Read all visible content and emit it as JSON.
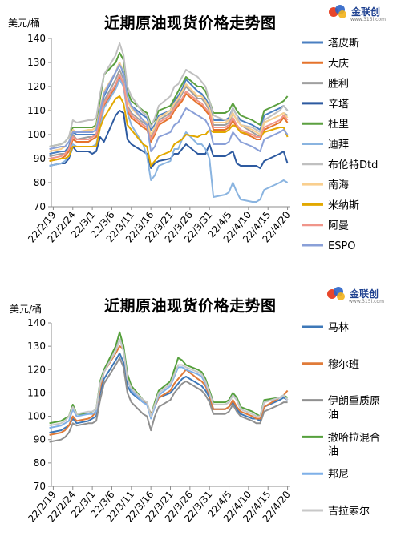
{
  "logo": {
    "text": "金联创",
    "sub": "www.315i.com"
  },
  "chart_data": [
    {
      "type": "line",
      "title": "近期原油现货价格走势图",
      "ylabel": "美元/桶",
      "ylim": [
        70,
        140
      ],
      "yticks": [
        "70",
        "80",
        "90",
        "100",
        "110",
        "120",
        "130",
        "140"
      ],
      "xtick_labels": [
        "22/2/19",
        "22/2/24",
        "22/3/1",
        "22/3/6",
        "22/3/11",
        "22/3/16",
        "22/3/21",
        "22/3/26",
        "22/3/31",
        "22/4/5",
        "22/4/10",
        "22/4/15",
        "22/4/20"
      ],
      "grid": false,
      "legend": "right",
      "x": [
        "2022-02-18",
        "2022-02-21",
        "2022-02-22",
        "2022-02-23",
        "2022-02-24",
        "2022-02-25",
        "2022-02-28",
        "2022-03-01",
        "2022-03-02",
        "2022-03-03",
        "2022-03-04",
        "2022-03-07",
        "2022-03-08",
        "2022-03-09",
        "2022-03-10",
        "2022-03-11",
        "2022-03-14",
        "2022-03-15",
        "2022-03-16",
        "2022-03-17",
        "2022-03-18",
        "2022-03-21",
        "2022-03-22",
        "2022-03-23",
        "2022-03-24",
        "2022-03-25",
        "2022-03-28",
        "2022-03-29",
        "2022-03-30",
        "2022-03-31",
        "2022-04-01",
        "2022-04-04",
        "2022-04-05",
        "2022-04-06",
        "2022-04-07",
        "2022-04-08",
        "2022-04-11",
        "2022-04-12",
        "2022-04-13",
        "2022-04-14",
        "2022-04-18",
        "2022-04-19",
        "2022-04-20"
      ],
      "series": [
        {
          "name": "塔皮斯",
          "color": "#4a7fc1",
          "values": [
            92,
            93,
            93,
            95,
            101,
            100,
            100,
            100,
            100,
            110,
            116,
            126,
            130,
            125,
            115,
            112,
            108,
            107,
            102,
            104,
            108,
            110,
            114,
            116,
            119,
            123,
            118,
            117,
            115,
            112,
            106,
            106,
            107,
            111,
            108,
            106,
            104,
            103,
            102,
            108,
            111,
            112,
            110
          ]
        },
        {
          "name": "大庆",
          "color": "#e5732c",
          "values": [
            89,
            90,
            91,
            93,
            98,
            97,
            97,
            98,
            99,
            106,
            112,
            120,
            124,
            120,
            110,
            107,
            103,
            102,
            97,
            100,
            104,
            107,
            110,
            112,
            114,
            117,
            113,
            112,
            110,
            108,
            102,
            102,
            103,
            106,
            103,
            101,
            99,
            98,
            98,
            102,
            105,
            107,
            105
          ]
        },
        {
          "name": "胜利",
          "color": "#a0a0a0",
          "values": [
            91,
            92,
            92,
            94,
            100,
            98,
            99,
            99,
            100,
            108,
            114,
            123,
            127,
            123,
            112,
            109,
            105,
            104,
            99,
            102,
            106,
            109,
            112,
            114,
            117,
            120,
            115,
            115,
            113,
            110,
            104,
            104,
            105,
            109,
            106,
            104,
            101,
            100,
            99,
            105,
            108,
            109,
            108
          ]
        },
        {
          "name": "辛塔",
          "color": "#2d5aa0",
          "values": [
            87,
            88,
            88,
            90,
            95,
            93,
            93,
            92,
            93,
            99,
            97,
            108,
            110,
            109,
            98,
            96,
            93,
            92,
            86,
            88,
            89,
            90,
            92,
            92,
            94,
            96,
            92,
            92,
            92,
            96,
            91,
            91,
            92,
            93,
            88,
            87,
            87,
            87,
            86,
            89,
            92,
            93,
            88
          ]
        },
        {
          "name": "杜里",
          "color": "#5ca040",
          "values": [
            95,
            96,
            97,
            99,
            103,
            103,
            103,
            103,
            104,
            115,
            125,
            130,
            134,
            131,
            118,
            114,
            110,
            109,
            104,
            106,
            110,
            112,
            115,
            118,
            121,
            124,
            120,
            120,
            118,
            114,
            109,
            109,
            110,
            113,
            110,
            108,
            106,
            105,
            104,
            110,
            113,
            114,
            116
          ]
        },
        {
          "name": "迪拜",
          "color": "#8ab4e0",
          "values": [
            87,
            88,
            89,
            91,
            96,
            95,
            95,
            95,
            96,
            103,
            111,
            119,
            123,
            120,
            109,
            104,
            96,
            91,
            81,
            83,
            87,
            89,
            94,
            94,
            98,
            101,
            96,
            96,
            94,
            90,
            74,
            75,
            76,
            80,
            76,
            73,
            72,
            72,
            73,
            77,
            80,
            81,
            80
          ]
        },
        {
          "name": "布伦特Dtd",
          "color": "#c0c0c0",
          "values": [
            95,
            96,
            97,
            99,
            106,
            105,
            106,
            106,
            107,
            117,
            125,
            133,
            138,
            133,
            120,
            116,
            109,
            108,
            103,
            107,
            112,
            116,
            120,
            121,
            124,
            127,
            124,
            122,
            120,
            114,
            108,
            106,
            106,
            111,
            108,
            104,
            103,
            102,
            101,
            106,
            110,
            112,
            110
          ]
        },
        {
          "name": "南海",
          "color": "#f9cf8f",
          "values": [
            93,
            94,
            95,
            97,
            102,
            101,
            102,
            102,
            103,
            111,
            118,
            126,
            130,
            126,
            114,
            111,
            106,
            105,
            100,
            103,
            107,
            110,
            113,
            115,
            118,
            121,
            116,
            116,
            114,
            111,
            105,
            105,
            106,
            109,
            106,
            104,
            102,
            101,
            100,
            105,
            108,
            109,
            107
          ]
        },
        {
          "name": "米纳斯",
          "color": "#e2a800",
          "values": [
            89,
            90,
            90,
            91,
            95,
            95,
            95,
            95,
            95,
            103,
            107,
            115,
            116,
            113,
            104,
            102,
            96,
            95,
            87,
            89,
            91,
            93,
            96,
            97,
            98,
            100,
            99,
            100,
            100,
            102,
            101,
            101,
            102,
            104,
            103,
            101,
            100,
            99,
            99,
            101,
            103,
            103,
            99
          ]
        },
        {
          "name": "阿曼",
          "color": "#f0958a",
          "values": [
            90,
            91,
            92,
            94,
            99,
            98,
            98,
            99,
            100,
            107,
            113,
            121,
            125,
            121,
            111,
            108,
            104,
            103,
            98,
            101,
            105,
            108,
            111,
            113,
            115,
            118,
            114,
            113,
            111,
            109,
            103,
            103,
            104,
            107,
            104,
            102,
            100,
            99,
            99,
            103,
            106,
            108,
            106
          ]
        },
        {
          "name": "ESPO",
          "color": "#8aa0d8",
          "values": [
            94,
            95,
            95,
            97,
            101,
            101,
            101,
            101,
            102,
            110,
            117,
            126,
            129,
            126,
            116,
            112,
            106,
            104,
            93,
            95,
            99,
            101,
            104,
            105,
            108,
            111,
            108,
            107,
            106,
            103,
            96,
            96,
            97,
            101,
            99,
            97,
            95,
            94,
            93,
            98,
            101,
            102,
            100
          ]
        }
      ]
    },
    {
      "type": "line",
      "title": "近期原油现货价格走势图",
      "ylabel": "美元/桶",
      "ylim": [
        70,
        140
      ],
      "yticks": [
        "70",
        "80",
        "90",
        "100",
        "110",
        "120",
        "130",
        "140"
      ],
      "xtick_labels": [
        "22/2/19",
        "22/2/24",
        "22/3/1",
        "22/3/6",
        "22/3/11",
        "22/3/16",
        "22/3/21",
        "22/3/26",
        "22/3/31",
        "22/4/5",
        "22/4/10",
        "22/4/15",
        "22/4/20"
      ],
      "grid": false,
      "legend": "right",
      "x": [
        "2022-02-18",
        "2022-02-21",
        "2022-02-22",
        "2022-02-23",
        "2022-02-24",
        "2022-02-25",
        "2022-02-28",
        "2022-03-01",
        "2022-03-02",
        "2022-03-03",
        "2022-03-04",
        "2022-03-07",
        "2022-03-08",
        "2022-03-09",
        "2022-03-10",
        "2022-03-11",
        "2022-03-14",
        "2022-03-15",
        "2022-03-16",
        "2022-03-17",
        "2022-03-18",
        "2022-03-21",
        "2022-03-22",
        "2022-03-23",
        "2022-03-24",
        "2022-03-25",
        "2022-03-28",
        "2022-03-29",
        "2022-03-30",
        "2022-03-31",
        "2022-04-01",
        "2022-04-04",
        "2022-04-05",
        "2022-04-06",
        "2022-04-07",
        "2022-04-08",
        "2022-04-11",
        "2022-04-12",
        "2022-04-13",
        "2022-04-14",
        "2022-04-18",
        "2022-04-19",
        "2022-04-20"
      ],
      "series": [
        {
          "name": "马林",
          "color": "#3e78b8",
          "values": [
            93,
            94,
            95,
            96,
            99,
            97,
            98,
            99,
            100,
            110,
            116,
            124,
            127,
            123,
            113,
            110,
            106,
            105,
            101,
            104,
            108,
            110,
            112,
            114,
            116,
            117,
            114,
            113,
            111,
            108,
            103,
            103,
            104,
            106,
            103,
            101,
            99,
            99,
            98,
            104,
            107,
            108,
            107
          ]
        },
        {
          "name": "穆尔班",
          "color": "#e07b39",
          "values": [
            92,
            93,
            94,
            96,
            100,
            98,
            99,
            100,
            102,
            112,
            119,
            127,
            130,
            129,
            116,
            112,
            107,
            105,
            101,
            104,
            108,
            111,
            114,
            116,
            118,
            120,
            116,
            115,
            113,
            109,
            103,
            103,
            104,
            107,
            104,
            102,
            100,
            99,
            99,
            104,
            108,
            109,
            111
          ]
        },
        {
          "name": "伊朗重质原油",
          "color": "#909090",
          "values": [
            89,
            90,
            91,
            93,
            97,
            96,
            97,
            97,
            98,
            107,
            114,
            122,
            125,
            121,
            110,
            106,
            101,
            100,
            94,
            100,
            104,
            107,
            110,
            112,
            114,
            115,
            112,
            111,
            109,
            106,
            101,
            101,
            102,
            105,
            102,
            100,
            98,
            97,
            97,
            102,
            105,
            106,
            106
          ]
        },
        {
          "name": "撒哈拉混合油",
          "color": "#55a03c",
          "values": [
            97,
            98,
            99,
            100,
            105,
            101,
            101,
            102,
            103,
            115,
            120,
            130,
            136,
            130,
            118,
            113,
            107,
            106,
            100,
            106,
            111,
            115,
            120,
            125,
            124,
            122,
            120,
            119,
            116,
            111,
            106,
            106,
            107,
            110,
            108,
            104,
            102,
            101,
            100,
            107,
            108,
            109,
            108
          ]
        },
        {
          "name": "邦尼",
          "color": "#7fb0e8",
          "values": [
            95,
            96,
            97,
            98,
            103,
            100,
            101,
            101,
            102,
            114,
            119,
            128,
            133,
            128,
            116,
            111,
            106,
            105,
            99,
            104,
            109,
            113,
            117,
            121,
            121,
            120,
            118,
            117,
            114,
            110,
            105,
            105,
            106,
            109,
            107,
            103,
            101,
            100,
            100,
            106,
            108,
            109,
            107
          ]
        },
        {
          "name": "吉拉索尔",
          "color": "#c8c8c8",
          "values": [
            96,
            97,
            98,
            100,
            104,
            101,
            102,
            102,
            103,
            114,
            119,
            128,
            133,
            128,
            116,
            112,
            107,
            106,
            100,
            105,
            110,
            114,
            118,
            122,
            122,
            121,
            119,
            118,
            115,
            110,
            105,
            105,
            106,
            109,
            107,
            103,
            101,
            100,
            100,
            106,
            108,
            109,
            107
          ]
        }
      ]
    }
  ]
}
